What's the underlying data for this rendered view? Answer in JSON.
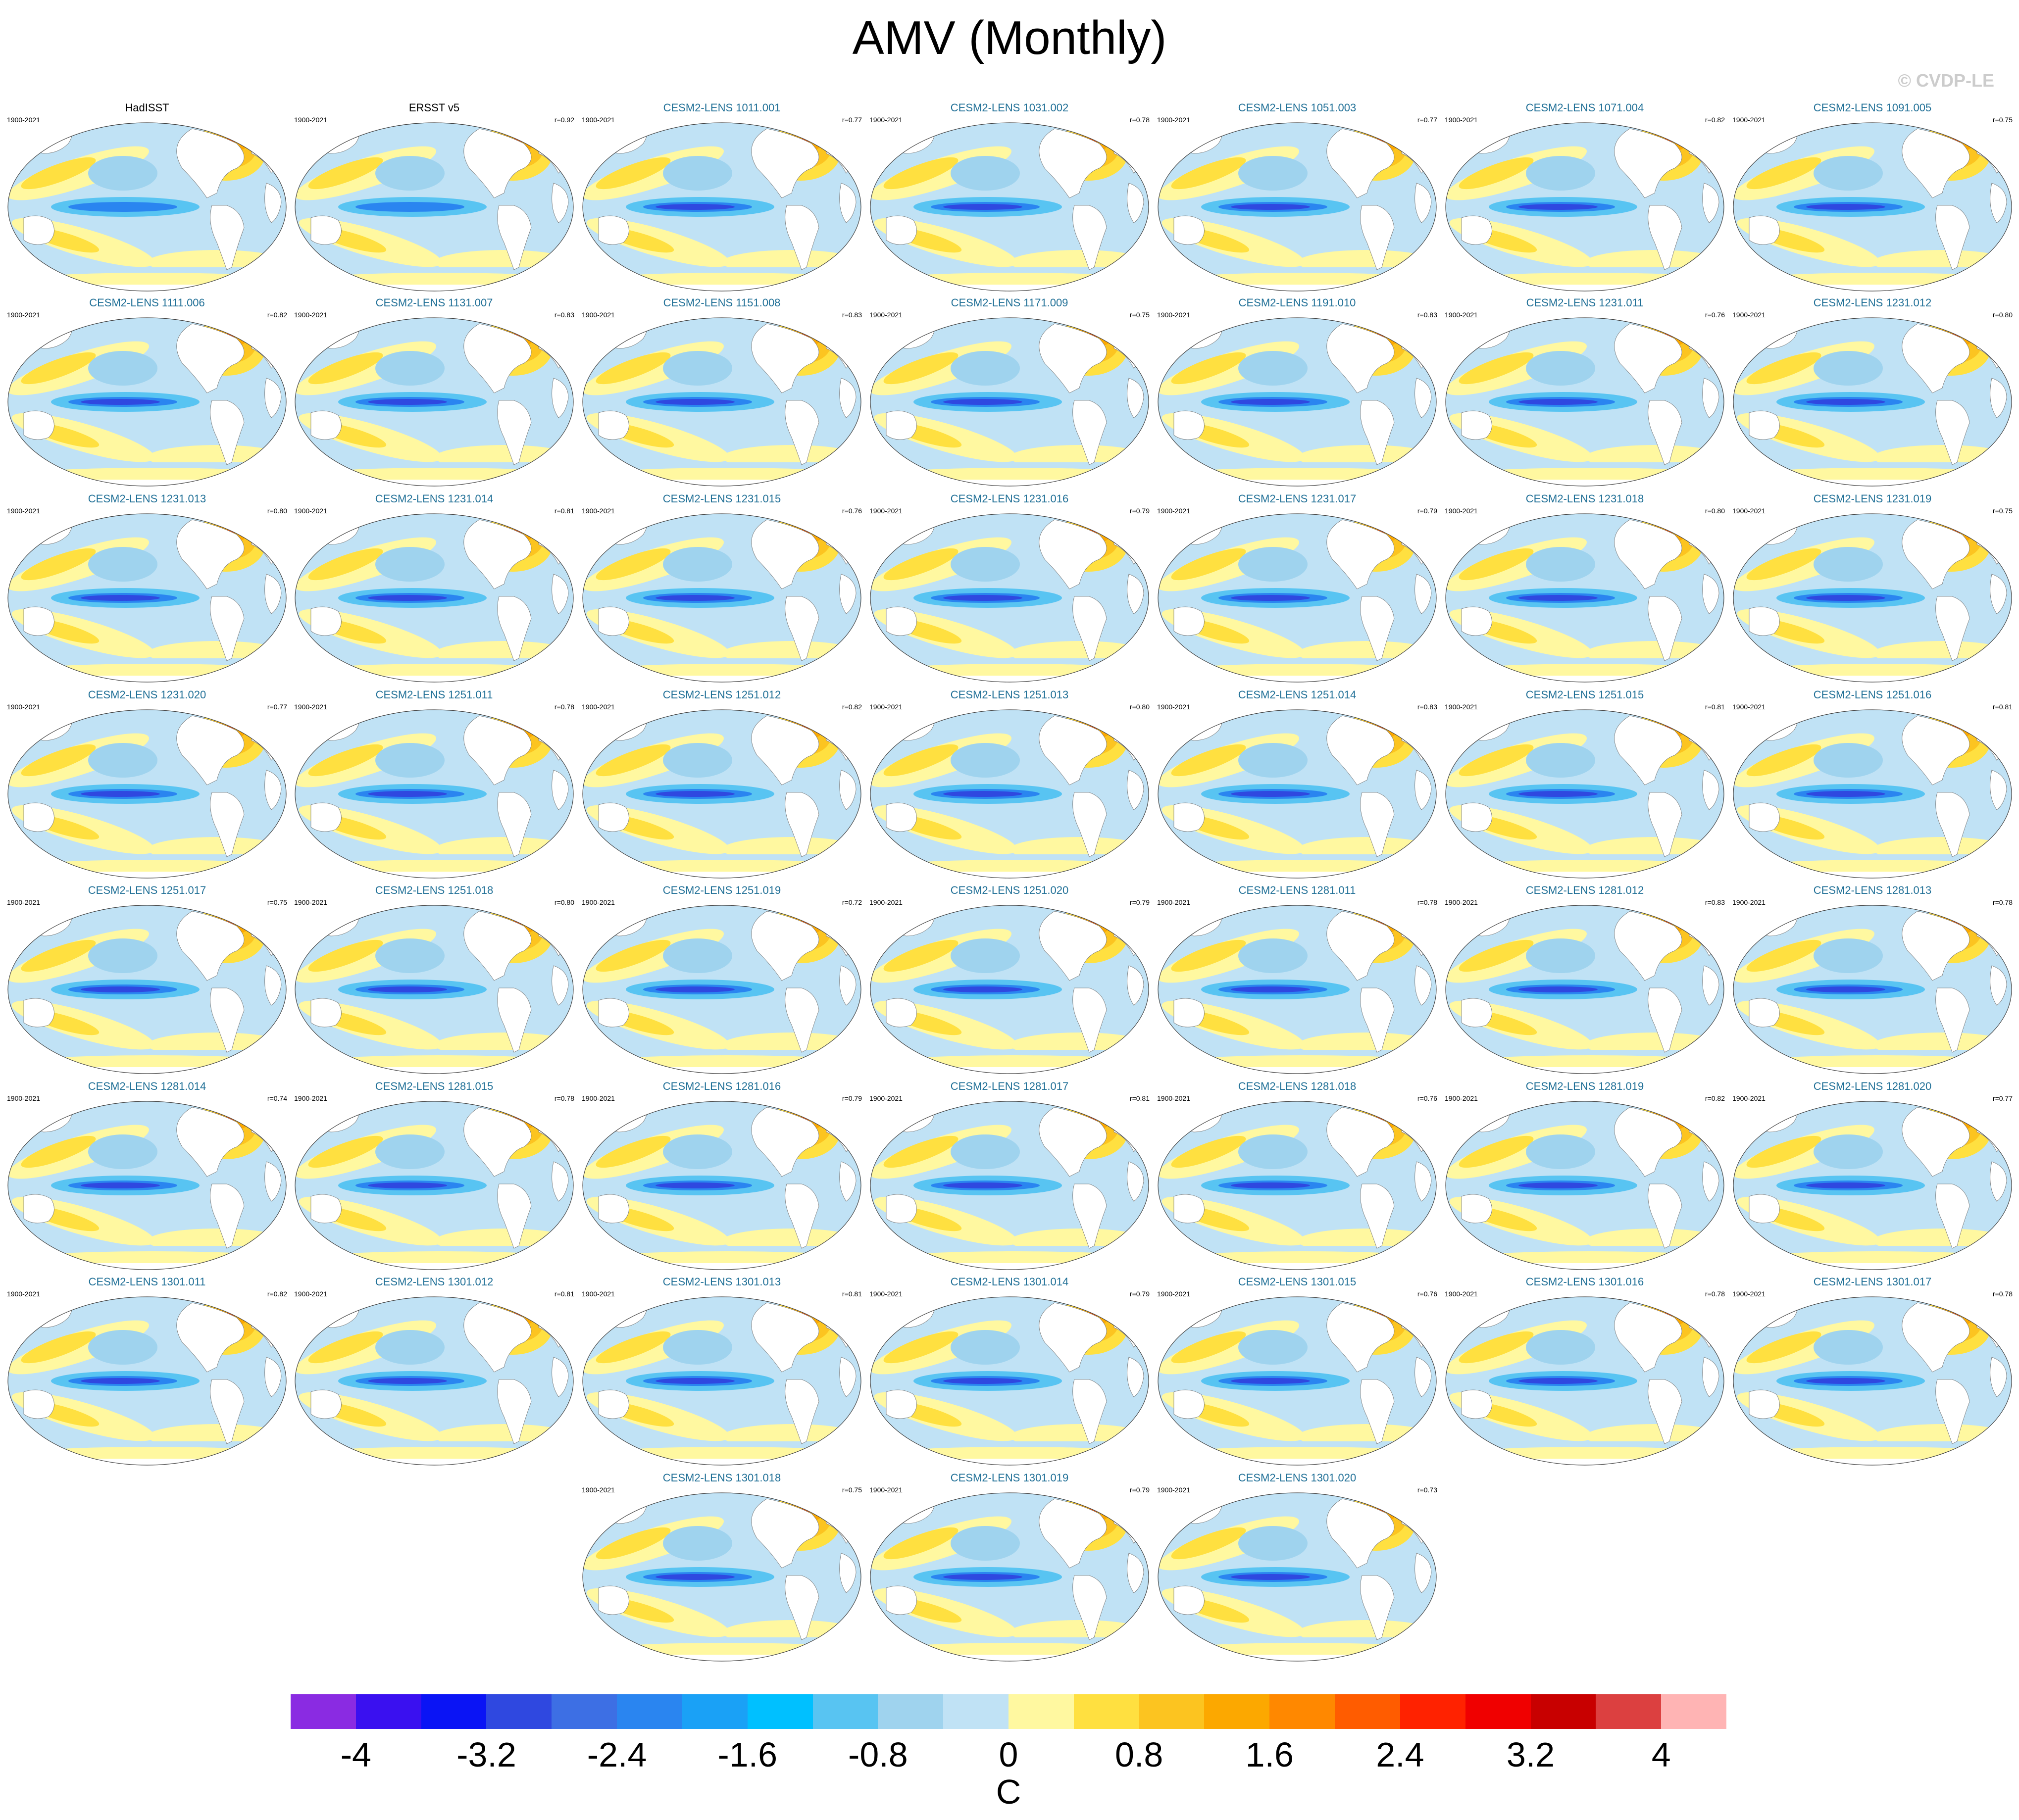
{
  "title": "AMV (Monthly)",
  "credit": "© CVDP-LE",
  "panels": [
    {
      "label": "HadISST",
      "years": "1900-2021",
      "r": "",
      "obs": true
    },
    {
      "label": "ERSST v5",
      "years": "1900-2021",
      "r": "r=0.92",
      "obs": true
    },
    {
      "label": "CESM2-LENS 1011.001",
      "years": "1900-2021",
      "r": "r=0.77"
    },
    {
      "label": "CESM2-LENS 1031.002",
      "years": "1900-2021",
      "r": "r=0.78"
    },
    {
      "label": "CESM2-LENS 1051.003",
      "years": "1900-2021",
      "r": "r=0.77"
    },
    {
      "label": "CESM2-LENS 1071.004",
      "years": "1900-2021",
      "r": "r=0.82"
    },
    {
      "label": "CESM2-LENS 1091.005",
      "years": "1900-2021",
      "r": "r=0.75"
    },
    {
      "label": "CESM2-LENS 1111.006",
      "years": "1900-2021",
      "r": "r=0.82"
    },
    {
      "label": "CESM2-LENS 1131.007",
      "years": "1900-2021",
      "r": "r=0.83"
    },
    {
      "label": "CESM2-LENS 1151.008",
      "years": "1900-2021",
      "r": "r=0.83"
    },
    {
      "label": "CESM2-LENS 1171.009",
      "years": "1900-2021",
      "r": "r=0.75"
    },
    {
      "label": "CESM2-LENS 1191.010",
      "years": "1900-2021",
      "r": "r=0.83"
    },
    {
      "label": "CESM2-LENS 1231.011",
      "years": "1900-2021",
      "r": "r=0.76"
    },
    {
      "label": "CESM2-LENS 1231.012",
      "years": "1900-2021",
      "r": "r=0.80"
    },
    {
      "label": "CESM2-LENS 1231.013",
      "years": "1900-2021",
      "r": "r=0.80"
    },
    {
      "label": "CESM2-LENS 1231.014",
      "years": "1900-2021",
      "r": "r=0.81"
    },
    {
      "label": "CESM2-LENS 1231.015",
      "years": "1900-2021",
      "r": "r=0.76"
    },
    {
      "label": "CESM2-LENS 1231.016",
      "years": "1900-2021",
      "r": "r=0.79"
    },
    {
      "label": "CESM2-LENS 1231.017",
      "years": "1900-2021",
      "r": "r=0.79"
    },
    {
      "label": "CESM2-LENS 1231.018",
      "years": "1900-2021",
      "r": "r=0.80"
    },
    {
      "label": "CESM2-LENS 1231.019",
      "years": "1900-2021",
      "r": "r=0.75"
    },
    {
      "label": "CESM2-LENS 1231.020",
      "years": "1900-2021",
      "r": "r=0.77"
    },
    {
      "label": "CESM2-LENS 1251.011",
      "years": "1900-2021",
      "r": "r=0.78"
    },
    {
      "label": "CESM2-LENS 1251.012",
      "years": "1900-2021",
      "r": "r=0.82"
    },
    {
      "label": "CESM2-LENS 1251.013",
      "years": "1900-2021",
      "r": "r=0.80"
    },
    {
      "label": "CESM2-LENS 1251.014",
      "years": "1900-2021",
      "r": "r=0.83"
    },
    {
      "label": "CESM2-LENS 1251.015",
      "years": "1900-2021",
      "r": "r=0.81"
    },
    {
      "label": "CESM2-LENS 1251.016",
      "years": "1900-2021",
      "r": "r=0.81"
    },
    {
      "label": "CESM2-LENS 1251.017",
      "years": "1900-2021",
      "r": "r=0.75"
    },
    {
      "label": "CESM2-LENS 1251.018",
      "years": "1900-2021",
      "r": "r=0.80"
    },
    {
      "label": "CESM2-LENS 1251.019",
      "years": "1900-2021",
      "r": "r=0.72"
    },
    {
      "label": "CESM2-LENS 1251.020",
      "years": "1900-2021",
      "r": "r=0.79"
    },
    {
      "label": "CESM2-LENS 1281.011",
      "years": "1900-2021",
      "r": "r=0.78"
    },
    {
      "label": "CESM2-LENS 1281.012",
      "years": "1900-2021",
      "r": "r=0.83"
    },
    {
      "label": "CESM2-LENS 1281.013",
      "years": "1900-2021",
      "r": "r=0.78"
    },
    {
      "label": "CESM2-LENS 1281.014",
      "years": "1900-2021",
      "r": "r=0.74"
    },
    {
      "label": "CESM2-LENS 1281.015",
      "years": "1900-2021",
      "r": "r=0.78"
    },
    {
      "label": "CESM2-LENS 1281.016",
      "years": "1900-2021",
      "r": "r=0.79"
    },
    {
      "label": "CESM2-LENS 1281.017",
      "years": "1900-2021",
      "r": "r=0.81"
    },
    {
      "label": "CESM2-LENS 1281.018",
      "years": "1900-2021",
      "r": "r=0.76"
    },
    {
      "label": "CESM2-LENS 1281.019",
      "years": "1900-2021",
      "r": "r=0.82"
    },
    {
      "label": "CESM2-LENS 1281.020",
      "years": "1900-2021",
      "r": "r=0.77"
    },
    {
      "label": "CESM2-LENS 1301.011",
      "years": "1900-2021",
      "r": "r=0.82"
    },
    {
      "label": "CESM2-LENS 1301.012",
      "years": "1900-2021",
      "r": "r=0.81"
    },
    {
      "label": "CESM2-LENS 1301.013",
      "years": "1900-2021",
      "r": "r=0.81"
    },
    {
      "label": "CESM2-LENS 1301.014",
      "years": "1900-2021",
      "r": "r=0.79"
    },
    {
      "label": "CESM2-LENS 1301.015",
      "years": "1900-2021",
      "r": "r=0.76"
    },
    {
      "label": "CESM2-LENS 1301.016",
      "years": "1900-2021",
      "r": "r=0.78"
    },
    {
      "label": "CESM2-LENS 1301.017",
      "years": "1900-2021",
      "r": "r=0.78"
    },
    {
      "label": "CESM2-LENS 1301.018",
      "years": "1900-2021",
      "r": "r=0.75"
    },
    {
      "label": "CESM2-LENS 1301.019",
      "years": "1900-2021",
      "r": "r=0.79"
    },
    {
      "label": "CESM2-LENS 1301.020",
      "years": "1900-2021",
      "r": "r=0.73"
    }
  ],
  "colorbar": {
    "units": "C",
    "colors": [
      "#8a2be2",
      "#3a10f0",
      "#0a14f5",
      "#2f48e0",
      "#3d6fe4",
      "#2a85f0",
      "#1aa1f6",
      "#00c0ff",
      "#58c4f2",
      "#9fd3ee",
      "#c0e2f5",
      "#fff8a0",
      "#ffe040",
      "#fcc420",
      "#fca800",
      "#ff8800",
      "#ff5c00",
      "#ff2200",
      "#f00000",
      "#c80000",
      "#dc4040",
      "#ffb4b4"
    ],
    "tick_labels": [
      "-4",
      "-3.2",
      "-2.4",
      "-1.6",
      "-0.8",
      "0",
      "0.8",
      "1.6",
      "2.4",
      "3.2",
      "4"
    ]
  }
}
